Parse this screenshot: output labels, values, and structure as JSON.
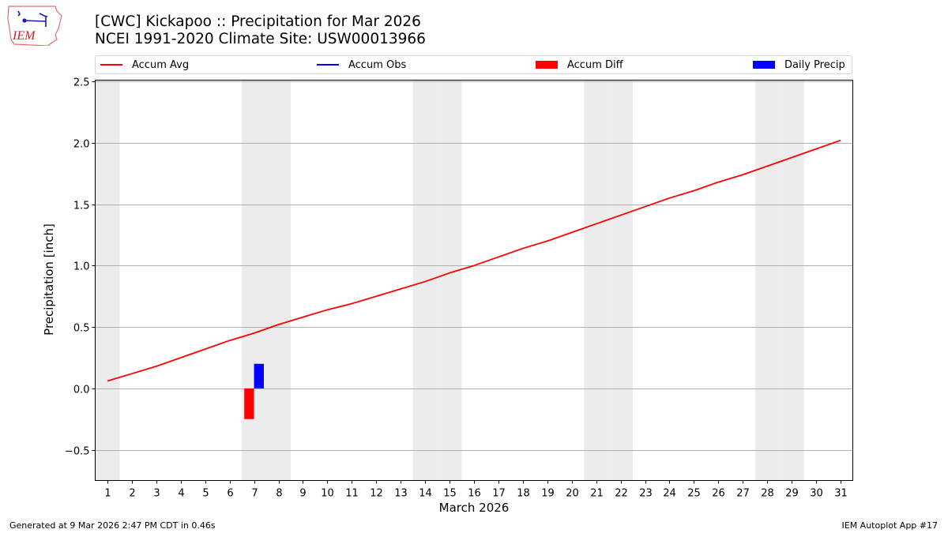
{
  "header": {
    "title_line1": "[CWC] Kickapoo :: Precipitation for Mar 2026",
    "title_line2": "NCEI 1991-2020 Climate Site: USW00013966",
    "logo_text": "IEM"
  },
  "legend": {
    "items": [
      {
        "label": "Accum Avg",
        "kind": "line",
        "color": "#ff0000"
      },
      {
        "label": "Accum Obs",
        "kind": "line",
        "color": "#0000ff"
      },
      {
        "label": "Accum Diff",
        "kind": "patch",
        "color": "#ff0000"
      },
      {
        "label": "Daily Precip",
        "kind": "patch",
        "color": "#0000ff"
      }
    ]
  },
  "footer": {
    "generated": "Generated at 9 Mar 2026 2:47 PM CDT in 0.46s",
    "app": "IEM Autoplot App #17"
  },
  "colors": {
    "accum_avg": "#ff0000",
    "accum_obs": "#0000ff",
    "accum_diff": "#ff0000",
    "daily_precip": "#0000ff",
    "weekend_shade": "#ececec",
    "grid": "#b0b0b0"
  },
  "chart_data": {
    "type": "line",
    "title": "[CWC] Kickapoo :: Precipitation for Mar 2026",
    "subtitle": "NCEI 1991-2020 Climate Site: USW00013966",
    "xlabel": "March 2026",
    "ylabel": "Precipitation [inch]",
    "xlim": [
      0.5,
      31.5
    ],
    "ylim": [
      -0.75,
      2.51
    ],
    "yticks": [
      -0.5,
      0.0,
      0.5,
      1.0,
      1.5,
      2.0,
      2.5
    ],
    "ytick_labels": [
      "−0.5",
      "0.0",
      "0.5",
      "1.0",
      "1.5",
      "2.0",
      "2.5"
    ],
    "x": [
      1,
      2,
      3,
      4,
      5,
      6,
      7,
      8,
      9,
      10,
      11,
      12,
      13,
      14,
      15,
      16,
      17,
      18,
      19,
      20,
      21,
      22,
      23,
      24,
      25,
      26,
      27,
      28,
      29,
      30,
      31
    ],
    "grid": "y",
    "legend_position": "top",
    "weekend_shading_days": [
      1,
      7,
      8,
      14,
      15,
      21,
      22,
      28,
      29
    ],
    "series": [
      {
        "name": "Accum Avg",
        "kind": "line",
        "color": "#ff0000",
        "values": [
          0.06,
          0.12,
          0.18,
          0.25,
          0.32,
          0.39,
          0.45,
          0.52,
          0.58,
          0.64,
          0.69,
          0.75,
          0.81,
          0.87,
          0.94,
          1.0,
          1.07,
          1.14,
          1.2,
          1.27,
          1.34,
          1.41,
          1.48,
          1.55,
          1.61,
          1.68,
          1.74,
          1.81,
          1.88,
          1.95,
          2.02
        ]
      },
      {
        "name": "Accum Obs",
        "kind": "line",
        "color": "#0000ff",
        "values": []
      },
      {
        "name": "Accum Diff",
        "kind": "bar",
        "color": "#ff0000",
        "points": [
          {
            "x": 7,
            "value": -0.25
          }
        ]
      },
      {
        "name": "Daily Precip",
        "kind": "bar",
        "color": "#0000ff",
        "points": [
          {
            "x": 7,
            "value": 0.2
          }
        ]
      }
    ]
  }
}
